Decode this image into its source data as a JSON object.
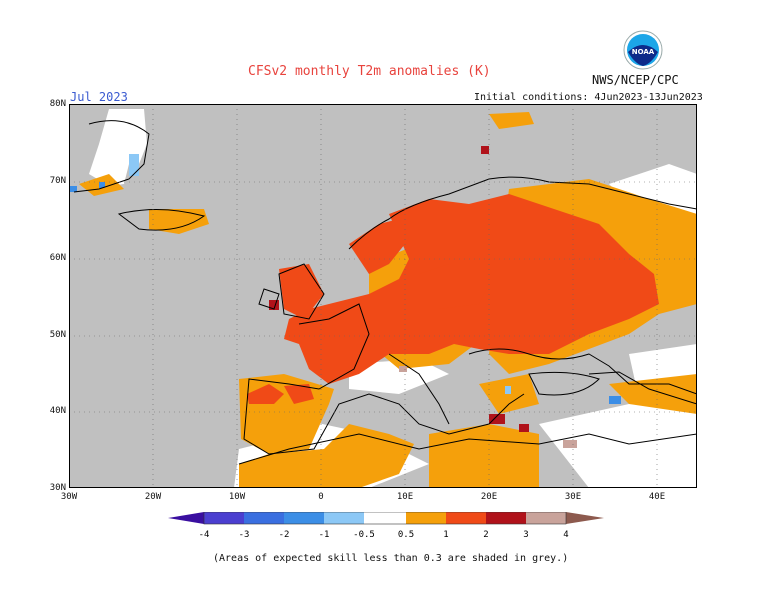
{
  "title": "CFSv2 monthly T2m anomalies (K)",
  "month": "Jul 2023",
  "initial_conditions": "Initial conditions: 4Jun2023-13Jun2023",
  "source": "NWS/NCEP/CPC",
  "logo_text": "NOAA",
  "lat_labels": [
    "80N",
    "70N",
    "60N",
    "50N",
    "40N",
    "30N"
  ],
  "lon_labels": [
    "30W",
    "20W",
    "10W",
    "0",
    "10E",
    "20E",
    "30E",
    "40E"
  ],
  "legend": {
    "ticks": [
      "-4",
      "-3",
      "-2",
      "-1",
      "-0.5",
      "0.5",
      "1",
      "2",
      "3",
      "4"
    ],
    "colors": {
      "below_-4": "#3a0fa0",
      "-4_-3": "#4b3fd0",
      "-3_-2": "#3a6fe0",
      "-2_-1": "#3c8ee6",
      "-1_-0.5": "#8cc8f6",
      "neutral": "#ffffff",
      "0.5_1": "#f5a00b",
      "1_2": "#f04a17",
      "2_3": "#b0121a",
      "3_4": "#c9a39b",
      "above_4": "#8d5a4e",
      "grey": "#c0c0c0"
    }
  },
  "caption": "(Areas of expected skill less than 0.3 are shaded in grey.)",
  "regions": [
    {
      "name": "central-europe",
      "anomaly": "1_2"
    },
    {
      "name": "western-russia",
      "anomaly": "1_2"
    },
    {
      "name": "scandinavia",
      "anomaly": "1_2"
    },
    {
      "name": "iberia",
      "anomaly": "0.5_1"
    },
    {
      "name": "north-africa",
      "anomaly": "0.5_1"
    },
    {
      "name": "atlantic-ocean",
      "anomaly": "grey"
    },
    {
      "name": "mediterranean",
      "anomaly": "grey"
    }
  ]
}
